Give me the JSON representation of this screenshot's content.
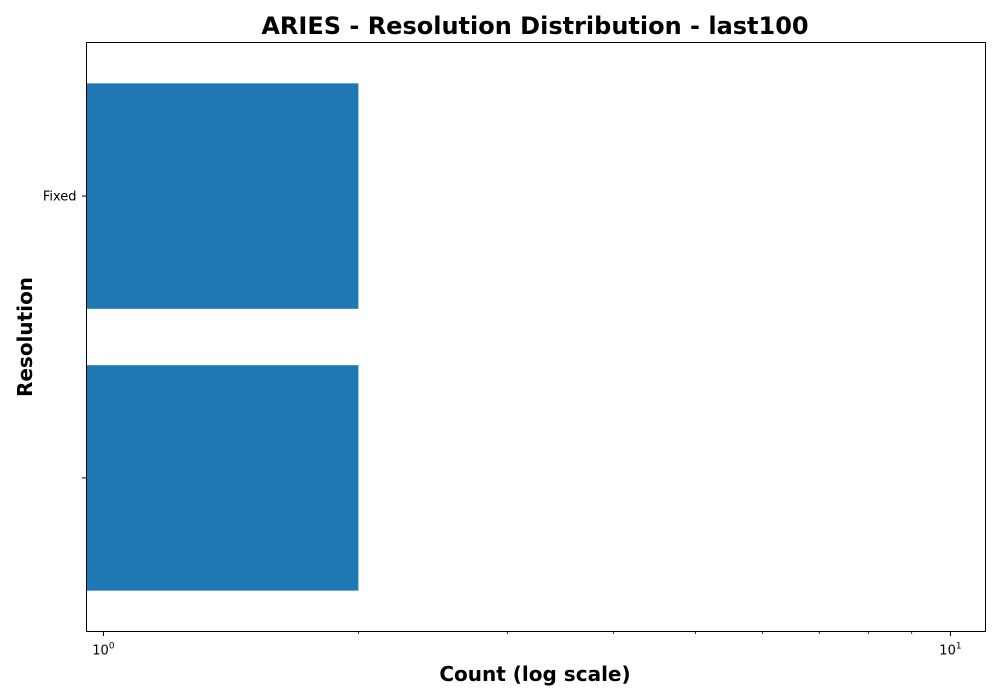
{
  "chart_data": {
    "type": "bar",
    "orientation": "horizontal",
    "title": "ARIES - Resolution Distribution - last100",
    "xlabel": "Count (log scale)",
    "ylabel": "Resolution",
    "x_scale": "log",
    "xlim": [
      0.955,
      11.0
    ],
    "x_ticks": [
      {
        "value": 1,
        "base": "10",
        "exp": "0"
      },
      {
        "value": 10,
        "base": "10",
        "exp": "1"
      }
    ],
    "x_minor_ticks": [
      2,
      3,
      4,
      5,
      6,
      7,
      8,
      9
    ],
    "categories": [
      "Fixed",
      ""
    ],
    "values": [
      2,
      2
    ],
    "bar_color": "#1f77b4",
    "grid": false,
    "legend": "none"
  }
}
